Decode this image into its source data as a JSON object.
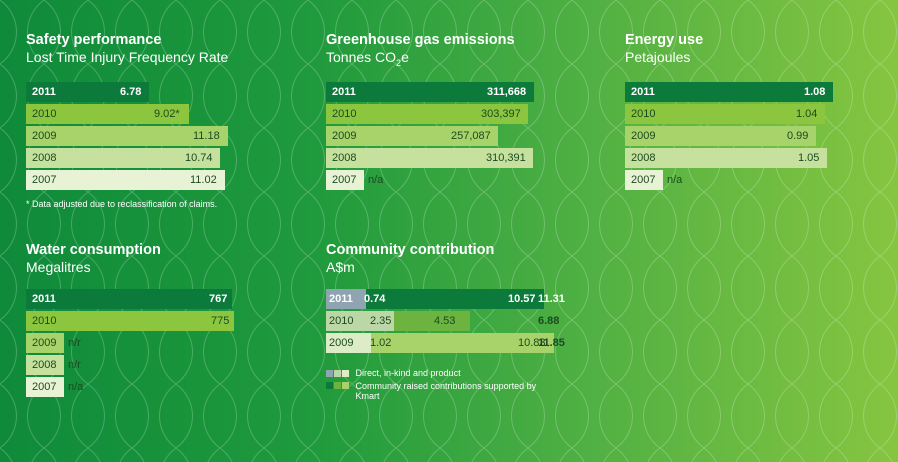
{
  "colors": {
    "bar_2011": "#0b7a3a",
    "bar_2010": "#8cc63f",
    "bar_2009": "#a8d26a",
    "bar_2008": "#c5e19d",
    "bar_2007": "#e8f3d6",
    "community_direct": [
      "#8fa3b0",
      "#bcd7a6",
      "#dcecc7"
    ],
    "community_raised": [
      "#0b7a3a",
      "#6cb33f",
      "#a8d26a"
    ]
  },
  "safety": {
    "title": "Safety performance",
    "subtitle": "Lost Time Injury Frequency Rate",
    "note": "* Data adjusted due to reclassification of claims.",
    "rows": [
      {
        "year": "2011",
        "value": "6.78",
        "v": 6.78
      },
      {
        "year": "2010",
        "value": "9.02*",
        "v": 9.02
      },
      {
        "year": "2009",
        "value": "11.18",
        "v": 11.18
      },
      {
        "year": "2008",
        "value": "10.74",
        "v": 10.74
      },
      {
        "year": "2007",
        "value": "11.02",
        "v": 11.02
      }
    ]
  },
  "ghg": {
    "title": "Greenhouse gas emissions",
    "subtitle_pre": "Tonnes CO",
    "subtitle_sub": "2",
    "subtitle_post": "e",
    "rows": [
      {
        "year": "2011",
        "value": "311,668",
        "v": 311668
      },
      {
        "year": "2010",
        "value": "303,397",
        "v": 303397
      },
      {
        "year": "2009",
        "value": "257,087",
        "v": 257087
      },
      {
        "year": "2008",
        "value": "310,391",
        "v": 310391
      },
      {
        "year": "2007",
        "value": "n/a",
        "v": null
      }
    ]
  },
  "energy": {
    "title": "Energy use",
    "subtitle": "Petajoules",
    "rows": [
      {
        "year": "2011",
        "value": "1.08",
        "v": 1.08
      },
      {
        "year": "2010",
        "value": "1.04",
        "v": 1.04
      },
      {
        "year": "2009",
        "value": "0.99",
        "v": 0.99
      },
      {
        "year": "2008",
        "value": "1.05",
        "v": 1.05
      },
      {
        "year": "2007",
        "value": "n/a",
        "v": null
      }
    ]
  },
  "water": {
    "title": "Water consumption",
    "subtitle": "Megalitres",
    "rows": [
      {
        "year": "2011",
        "value": "767",
        "v": 767
      },
      {
        "year": "2010",
        "value": "775",
        "v": 775
      },
      {
        "year": "2009",
        "value": "n/r",
        "v": null
      },
      {
        "year": "2008",
        "value": "n/r",
        "v": null
      },
      {
        "year": "2007",
        "value": "n/a",
        "v": null
      }
    ]
  },
  "community": {
    "title": "Community contribution",
    "subtitle": "A$m",
    "rows": [
      {
        "year": "2011",
        "direct": "0.74",
        "d": 0.74,
        "raised": "10.57",
        "r": 10.57,
        "total": "11.31"
      },
      {
        "year": "2010",
        "direct": "2.35",
        "d": 2.35,
        "raised": "4.53",
        "r": 4.53,
        "total": "6.88"
      },
      {
        "year": "2009",
        "direct": "1.02",
        "d": 1.02,
        "raised": "10.83",
        "r": 10.83,
        "total": "11.85"
      }
    ],
    "legend": [
      {
        "label": "Direct, in-kind and product"
      },
      {
        "label": "Community raised contributions supported by Kmart"
      }
    ]
  },
  "chart_data": [
    {
      "type": "bar",
      "title": "Safety performance",
      "ylabel": "Lost Time Injury Frequency Rate",
      "categories": [
        "2011",
        "2010",
        "2009",
        "2008",
        "2007"
      ],
      "values": [
        6.78,
        9.02,
        11.18,
        10.74,
        11.02
      ]
    },
    {
      "type": "bar",
      "title": "Greenhouse gas emissions",
      "ylabel": "Tonnes CO2e",
      "categories": [
        "2011",
        "2010",
        "2009",
        "2008",
        "2007"
      ],
      "values": [
        311668,
        303397,
        257087,
        310391,
        null
      ]
    },
    {
      "type": "bar",
      "title": "Energy use",
      "ylabel": "Petajoules",
      "categories": [
        "2011",
        "2010",
        "2009",
        "2008",
        "2007"
      ],
      "values": [
        1.08,
        1.04,
        0.99,
        1.05,
        null
      ]
    },
    {
      "type": "bar",
      "title": "Water consumption",
      "ylabel": "Megalitres",
      "categories": [
        "2011",
        "2010",
        "2009",
        "2008",
        "2007"
      ],
      "values": [
        767,
        775,
        null,
        null,
        null
      ]
    },
    {
      "type": "bar",
      "title": "Community contribution",
      "ylabel": "A$m",
      "categories": [
        "2011",
        "2010",
        "2009"
      ],
      "series": [
        {
          "name": "Direct, in-kind and product",
          "values": [
            0.74,
            2.35,
            1.02
          ]
        },
        {
          "name": "Community raised contributions supported by Kmart",
          "values": [
            10.57,
            4.53,
            10.83
          ]
        }
      ],
      "totals": [
        11.31,
        6.88,
        11.85
      ]
    }
  ]
}
